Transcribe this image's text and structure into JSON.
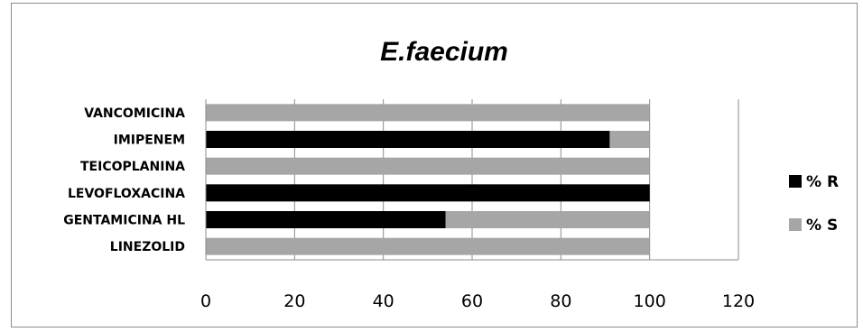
{
  "chart_data": {
    "type": "bar",
    "orientation": "horizontal",
    "stacked": true,
    "title": "E.faecium",
    "categories": [
      "VANCOMICINA",
      "IMIPENEM",
      "TEICOPLANINA",
      "LEVOFLOXACINA",
      "GENTAMICINA HL",
      "LINEZOLID"
    ],
    "series": [
      {
        "name": "% R",
        "color": "#000000",
        "values": [
          0,
          91,
          0,
          100,
          54,
          0
        ]
      },
      {
        "name": "% S",
        "color": "#a6a6a6",
        "values": [
          100,
          9,
          100,
          0,
          46,
          100
        ]
      }
    ],
    "xlim": [
      0,
      120
    ],
    "xticks": [
      "0",
      "20",
      "40",
      "60",
      "80",
      "100",
      "120"
    ],
    "grid": true,
    "legend_position": "right"
  }
}
